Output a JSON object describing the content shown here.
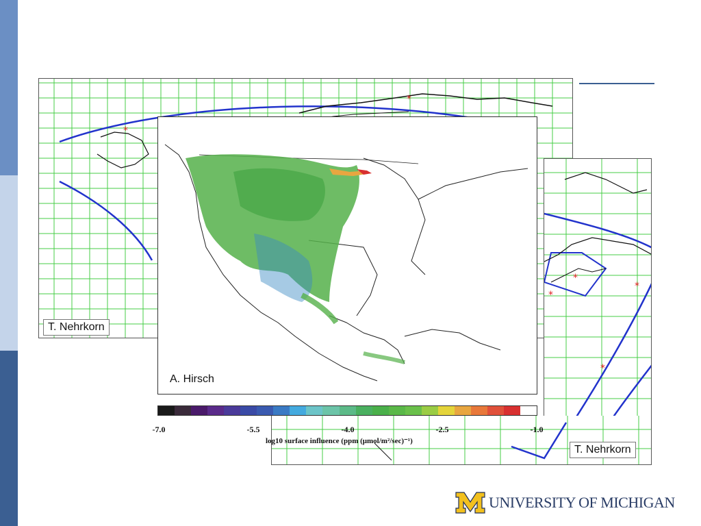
{
  "slide": {
    "sidebar_colors": [
      "#6b8fc4",
      "#c4d4ea",
      "#3b5f92"
    ]
  },
  "panels": {
    "left_credit": "T. Nehrkorn",
    "center_credit": "A. Hirsch",
    "right_credit": "T. Nehrkorn"
  },
  "colorbar": {
    "ticks": [
      "-7.0",
      "-5.5",
      "-4.0",
      "-2.5",
      "-1.0"
    ],
    "title": "log10 surface influence (ppm (μmol/m²/sec)⁻¹)",
    "colors": [
      "#1a1a1a",
      "#3a2a3a",
      "#4a1a6a",
      "#5a2a8a",
      "#4a3a9a",
      "#3a4aa6",
      "#3a5ab0",
      "#3a7ac4",
      "#44aadf",
      "#6cc4c8",
      "#6cc4a8",
      "#5cba88",
      "#4ab060",
      "#4ab04a",
      "#5ab848",
      "#6ac04a",
      "#9acc44",
      "#e4d43a",
      "#e8a640",
      "#e8783a",
      "#e0503a",
      "#d83030",
      "#ffffff"
    ]
  },
  "logo": {
    "letter": "M",
    "text": "UNIVERSITY OF MICHIGAN"
  }
}
